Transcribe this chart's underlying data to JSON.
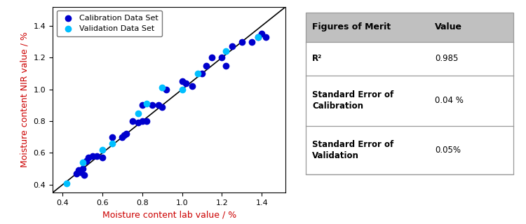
{
  "calib_x": [
    0.47,
    0.48,
    0.49,
    0.5,
    0.51,
    0.52,
    0.53,
    0.55,
    0.57,
    0.6,
    0.65,
    0.7,
    0.71,
    0.72,
    0.75,
    0.78,
    0.8,
    0.8,
    0.82,
    0.85,
    0.88,
    0.9,
    0.92,
    1.0,
    1.02,
    1.05,
    1.1,
    1.12,
    1.15,
    1.2,
    1.22,
    1.25,
    1.3,
    1.35,
    1.38,
    1.4,
    1.42
  ],
  "calib_y": [
    0.47,
    0.49,
    0.48,
    0.5,
    0.46,
    0.55,
    0.57,
    0.58,
    0.58,
    0.57,
    0.7,
    0.7,
    0.71,
    0.72,
    0.8,
    0.79,
    0.8,
    0.9,
    0.8,
    0.9,
    0.9,
    0.89,
    1.0,
    1.05,
    1.04,
    1.02,
    1.1,
    1.15,
    1.2,
    1.2,
    1.15,
    1.27,
    1.3,
    1.3,
    1.33,
    1.35,
    1.33
  ],
  "valid_x": [
    0.42,
    0.5,
    0.6,
    0.65,
    0.78,
    0.82,
    0.9,
    1.0,
    1.08,
    1.22,
    1.38
  ],
  "valid_y": [
    0.41,
    0.54,
    0.62,
    0.66,
    0.85,
    0.91,
    1.01,
    1.0,
    1.1,
    1.24,
    1.33
  ],
  "calib_color": "#0000CD",
  "valid_color": "#00BFFF",
  "line_color": "#000000",
  "xlabel": "Moisture content lab value / %",
  "ylabel": "Moisture content NIR value / %",
  "xlabel_color": "#CC0000",
  "ylabel_color": "#CC0000",
  "xlim": [
    0.35,
    1.52
  ],
  "ylim": [
    0.35,
    1.52
  ],
  "xticks": [
    0.4,
    0.6,
    0.8,
    1.0,
    1.2,
    1.4
  ],
  "yticks": [
    0.4,
    0.6,
    0.8,
    1.0,
    1.2,
    1.4
  ],
  "legend_calib": "Calibration Data Set",
  "legend_valid": "Validation Data Set",
  "table_header_col1": "Figures of Merit",
  "table_header_col2": "Value",
  "table_rows": [
    [
      "R²",
      "0.985"
    ],
    [
      "Standard Error of\nCalibration",
      "0.04 %"
    ],
    [
      "Standard Error of\nValidation",
      "0.05%"
    ]
  ],
  "header_bg": "#C0C0C0",
  "line_color_table": "#999999"
}
